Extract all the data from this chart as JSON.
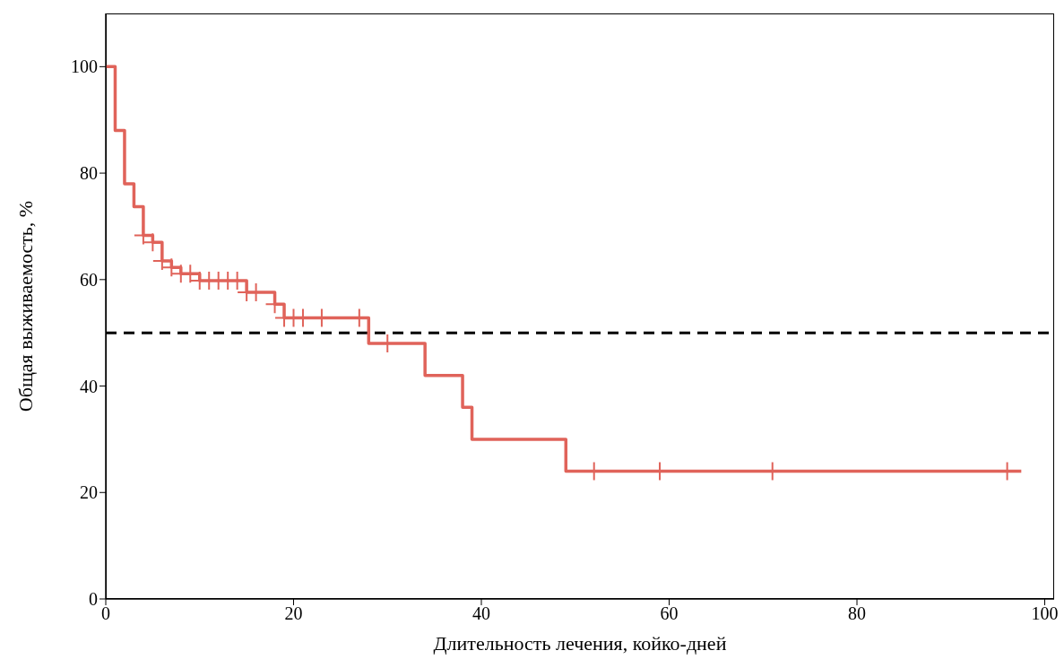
{
  "chart_data": {
    "type": "step",
    "xlabel": "Длительность лечения, койко-дней",
    "ylabel": "Общая выживаемость, %",
    "xlim": [
      0,
      101
    ],
    "xticks": [
      0,
      20,
      40,
      60,
      80,
      100
    ],
    "ylim": [
      0,
      110
    ],
    "yticks": [
      0,
      20,
      40,
      60,
      80,
      100
    ],
    "grid": false,
    "series": [
      {
        "type": "step",
        "color": "#e0635a",
        "line_style": "solid",
        "x": [
          0,
          1,
          2,
          3,
          4,
          5,
          6,
          7,
          8,
          10,
          15,
          18,
          19,
          28,
          34,
          38,
          39,
          49,
          97.5
        ],
        "values": [
          100,
          88,
          78,
          73.7,
          68.3,
          67,
          63.5,
          62.3,
          61.1,
          59.8,
          57.6,
          55.4,
          52.8,
          48,
          42,
          36,
          30,
          24,
          24
        ]
      },
      {
        "type": "scatter",
        "marker": "cross",
        "color": "#e0635a",
        "x": [
          4,
          5,
          6,
          7,
          8,
          9,
          10,
          11,
          12,
          13,
          14,
          15,
          16,
          18,
          19,
          20,
          21,
          23,
          27,
          30,
          52,
          59,
          71,
          96
        ],
        "values": [
          68.3,
          67,
          63.5,
          62.3,
          61.1,
          61.1,
          59.8,
          59.8,
          59.8,
          59.8,
          59.8,
          57.6,
          57.6,
          55.4,
          52.8,
          52.8,
          52.8,
          52.8,
          52.8,
          48,
          24,
          24,
          24,
          24
        ]
      }
    ],
    "ref_lines": [
      {
        "axis": "y",
        "value": 50,
        "color": "#000000",
        "line_style": "dashed"
      }
    ]
  }
}
